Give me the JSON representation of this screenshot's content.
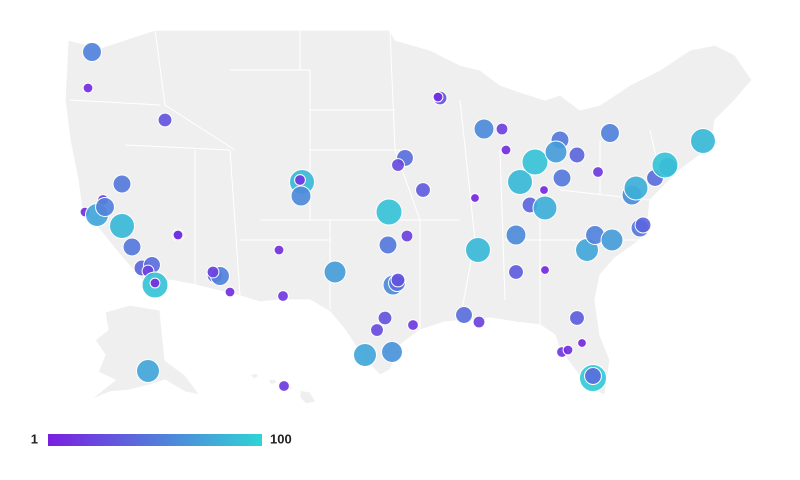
{
  "legend": {
    "min": 1,
    "max": 100,
    "color_low": "#7a1fe0",
    "color_high": "#2fd4d6"
  },
  "points": [
    {
      "value": 55
    },
    {
      "value": 10
    },
    {
      "value": 30
    },
    {
      "value": 10
    },
    {
      "value": 15
    },
    {
      "value": 75
    },
    {
      "value": 55
    },
    {
      "value": 85
    },
    {
      "value": 50
    },
    {
      "value": 50
    },
    {
      "value": 40
    },
    {
      "value": 45
    },
    {
      "value": 20
    },
    {
      "value": 90
    },
    {
      "value": 10
    },
    {
      "value": 20
    },
    {
      "value": 10
    },
    {
      "value": 40
    },
    {
      "value": 55
    },
    {
      "value": 20
    },
    {
      "value": 10
    },
    {
      "value": 10
    },
    {
      "value": 15
    },
    {
      "value": 85
    },
    {
      "value": 15
    },
    {
      "value": 60
    },
    {
      "value": 90
    },
    {
      "value": 45
    },
    {
      "value": 25
    },
    {
      "value": 35
    },
    {
      "value": 50
    },
    {
      "value": 20
    },
    {
      "value": 60
    },
    {
      "value": 45
    },
    {
      "value": 30
    },
    {
      "value": 70
    },
    {
      "value": 30
    },
    {
      "value": 25
    },
    {
      "value": 75
    },
    {
      "value": 65
    },
    {
      "value": 15
    },
    {
      "value": 30
    },
    {
      "value": 10
    },
    {
      "value": 60
    },
    {
      "value": 20
    },
    {
      "value": 10
    },
    {
      "value": 85
    },
    {
      "value": 90
    },
    {
      "value": 50
    },
    {
      "value": 70
    },
    {
      "value": 40
    },
    {
      "value": 5
    },
    {
      "value": 40
    },
    {
      "value": 80
    },
    {
      "value": 50
    },
    {
      "value": 5
    },
    {
      "value": 85
    },
    {
      "value": 60
    },
    {
      "value": 35
    },
    {
      "value": 5
    },
    {
      "value": 45
    },
    {
      "value": 20
    },
    {
      "value": 35
    },
    {
      "value": 15
    },
    {
      "value": 10
    },
    {
      "value": 5
    },
    {
      "value": 95
    },
    {
      "value": 45
    },
    {
      "value": 75
    },
    {
      "value": 55
    },
    {
      "value": 70
    },
    {
      "value": 50
    },
    {
      "value": 40
    },
    {
      "value": 60
    },
    {
      "value": 80
    },
    {
      "value": 45
    },
    {
      "value": 55
    },
    {
      "value": 90
    },
    {
      "value": 85
    },
    {
      "value": 55
    },
    {
      "value": 15
    },
    {
      "value": 75
    },
    {
      "value": 15
    }
  ]
}
